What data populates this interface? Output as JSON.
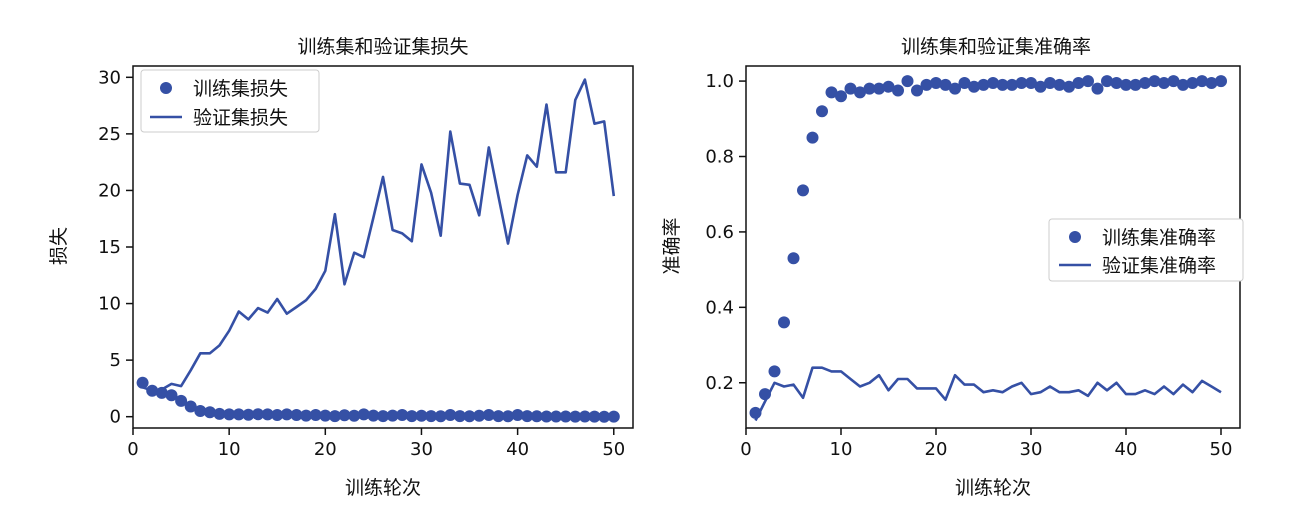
{
  "colors": {
    "series": "#3550a5",
    "axis": "#111111"
  },
  "chart_data": [
    {
      "type": "line",
      "title": "训练集和验证集损失",
      "xlabel": "训练轮次",
      "ylabel": "损失",
      "xlim": [
        0,
        52
      ],
      "ylim": [
        -1,
        31
      ],
      "xticks": [
        0,
        10,
        20,
        30,
        40,
        50
      ],
      "yticks": [
        0,
        5,
        10,
        15,
        20,
        25,
        30
      ],
      "grid": false,
      "legend_position": "top-left",
      "series": [
        {
          "name": "训练集损失",
          "style": "markers",
          "x": [
            1,
            2,
            3,
            4,
            5,
            6,
            7,
            8,
            9,
            10,
            11,
            12,
            13,
            14,
            15,
            16,
            17,
            18,
            19,
            20,
            21,
            22,
            23,
            24,
            25,
            26,
            27,
            28,
            29,
            30,
            31,
            32,
            33,
            34,
            35,
            36,
            37,
            38,
            39,
            40,
            41,
            42,
            43,
            44,
            45,
            46,
            47,
            48,
            49,
            50
          ],
          "values": [
            3.0,
            2.3,
            2.1,
            1.9,
            1.4,
            0.9,
            0.5,
            0.4,
            0.25,
            0.2,
            0.2,
            0.18,
            0.22,
            0.2,
            0.15,
            0.2,
            0.15,
            0.1,
            0.15,
            0.1,
            0.05,
            0.12,
            0.08,
            0.2,
            0.1,
            0.05,
            0.1,
            0.15,
            0.05,
            0.08,
            0.05,
            0.03,
            0.15,
            0.05,
            0.03,
            0.08,
            0.15,
            0.05,
            0.03,
            0.15,
            0.05,
            0.03,
            0.02,
            0.02,
            0.02,
            0.01,
            0.02,
            0.01,
            0.0,
            0.01
          ]
        },
        {
          "name": "验证集损失",
          "style": "line",
          "x": [
            1,
            2,
            3,
            4,
            5,
            6,
            7,
            8,
            9,
            10,
            11,
            12,
            13,
            14,
            15,
            16,
            17,
            18,
            19,
            20,
            21,
            22,
            23,
            24,
            25,
            26,
            27,
            28,
            29,
            30,
            31,
            32,
            33,
            34,
            35,
            36,
            37,
            38,
            39,
            40,
            41,
            42,
            43,
            44,
            45,
            46,
            47,
            48,
            49,
            50
          ],
          "values": [
            2.6,
            2.3,
            2.4,
            2.9,
            2.7,
            4.1,
            5.6,
            5.6,
            6.3,
            7.6,
            9.3,
            8.6,
            9.6,
            9.2,
            10.4,
            9.1,
            9.7,
            10.3,
            11.3,
            12.9,
            17.9,
            11.7,
            14.5,
            14.1,
            17.6,
            21.2,
            16.5,
            16.2,
            15.5,
            22.3,
            19.8,
            16.0,
            25.2,
            20.6,
            20.5,
            17.8,
            23.8,
            19.5,
            15.3,
            19.6,
            23.1,
            22.1,
            27.6,
            21.6,
            21.6,
            28.0,
            29.8,
            25.9,
            26.1,
            19.5
          ]
        }
      ]
    },
    {
      "type": "line",
      "title": "训练集和验证集准确率",
      "xlabel": "训练轮次",
      "ylabel": "准确率",
      "xlim": [
        0,
        52
      ],
      "ylim": [
        0.08,
        1.04
      ],
      "xticks": [
        0,
        10,
        20,
        30,
        40,
        50
      ],
      "yticks": [
        0.2,
        0.4,
        0.6,
        0.8,
        1.0
      ],
      "ytick_labels": [
        "0.2",
        "0.4",
        "0.6",
        "0.8",
        "1.0"
      ],
      "grid": false,
      "legend_position": "center-right",
      "series": [
        {
          "name": "训练集准确率",
          "style": "markers",
          "x": [
            1,
            2,
            3,
            4,
            5,
            6,
            7,
            8,
            9,
            10,
            11,
            12,
            13,
            14,
            15,
            16,
            17,
            18,
            19,
            20,
            21,
            22,
            23,
            24,
            25,
            26,
            27,
            28,
            29,
            30,
            31,
            32,
            33,
            34,
            35,
            36,
            37,
            38,
            39,
            40,
            41,
            42,
            43,
            44,
            45,
            46,
            47,
            48,
            49,
            50
          ],
          "values": [
            0.12,
            0.17,
            0.23,
            0.36,
            0.53,
            0.71,
            0.85,
            0.92,
            0.97,
            0.96,
            0.98,
            0.97,
            0.98,
            0.98,
            0.985,
            0.975,
            1.0,
            0.975,
            0.99,
            0.995,
            0.99,
            0.98,
            0.995,
            0.985,
            0.99,
            0.995,
            0.99,
            0.99,
            0.995,
            0.995,
            0.985,
            0.995,
            0.99,
            0.985,
            0.995,
            1.0,
            0.98,
            1.0,
            0.995,
            0.99,
            0.99,
            0.995,
            1.0,
            0.995,
            1.0,
            0.99,
            0.995,
            1.0,
            0.995,
            1.0
          ]
        },
        {
          "name": "验证集准确率",
          "style": "line",
          "x": [
            1,
            2,
            3,
            4,
            5,
            6,
            7,
            8,
            9,
            10,
            11,
            12,
            13,
            14,
            15,
            16,
            17,
            18,
            19,
            20,
            21,
            22,
            23,
            24,
            25,
            26,
            27,
            28,
            29,
            30,
            31,
            32,
            33,
            34,
            35,
            36,
            37,
            38,
            39,
            40,
            41,
            42,
            43,
            44,
            45,
            46,
            47,
            48,
            49,
            50
          ],
          "values": [
            0.1,
            0.15,
            0.2,
            0.19,
            0.195,
            0.16,
            0.24,
            0.24,
            0.23,
            0.23,
            0.21,
            0.19,
            0.2,
            0.22,
            0.18,
            0.21,
            0.21,
            0.185,
            0.185,
            0.185,
            0.155,
            0.22,
            0.195,
            0.195,
            0.175,
            0.18,
            0.175,
            0.19,
            0.2,
            0.17,
            0.175,
            0.19,
            0.175,
            0.175,
            0.18,
            0.165,
            0.2,
            0.18,
            0.2,
            0.17,
            0.17,
            0.18,
            0.17,
            0.19,
            0.17,
            0.195,
            0.175,
            0.205,
            0.19,
            0.175
          ]
        }
      ]
    }
  ]
}
